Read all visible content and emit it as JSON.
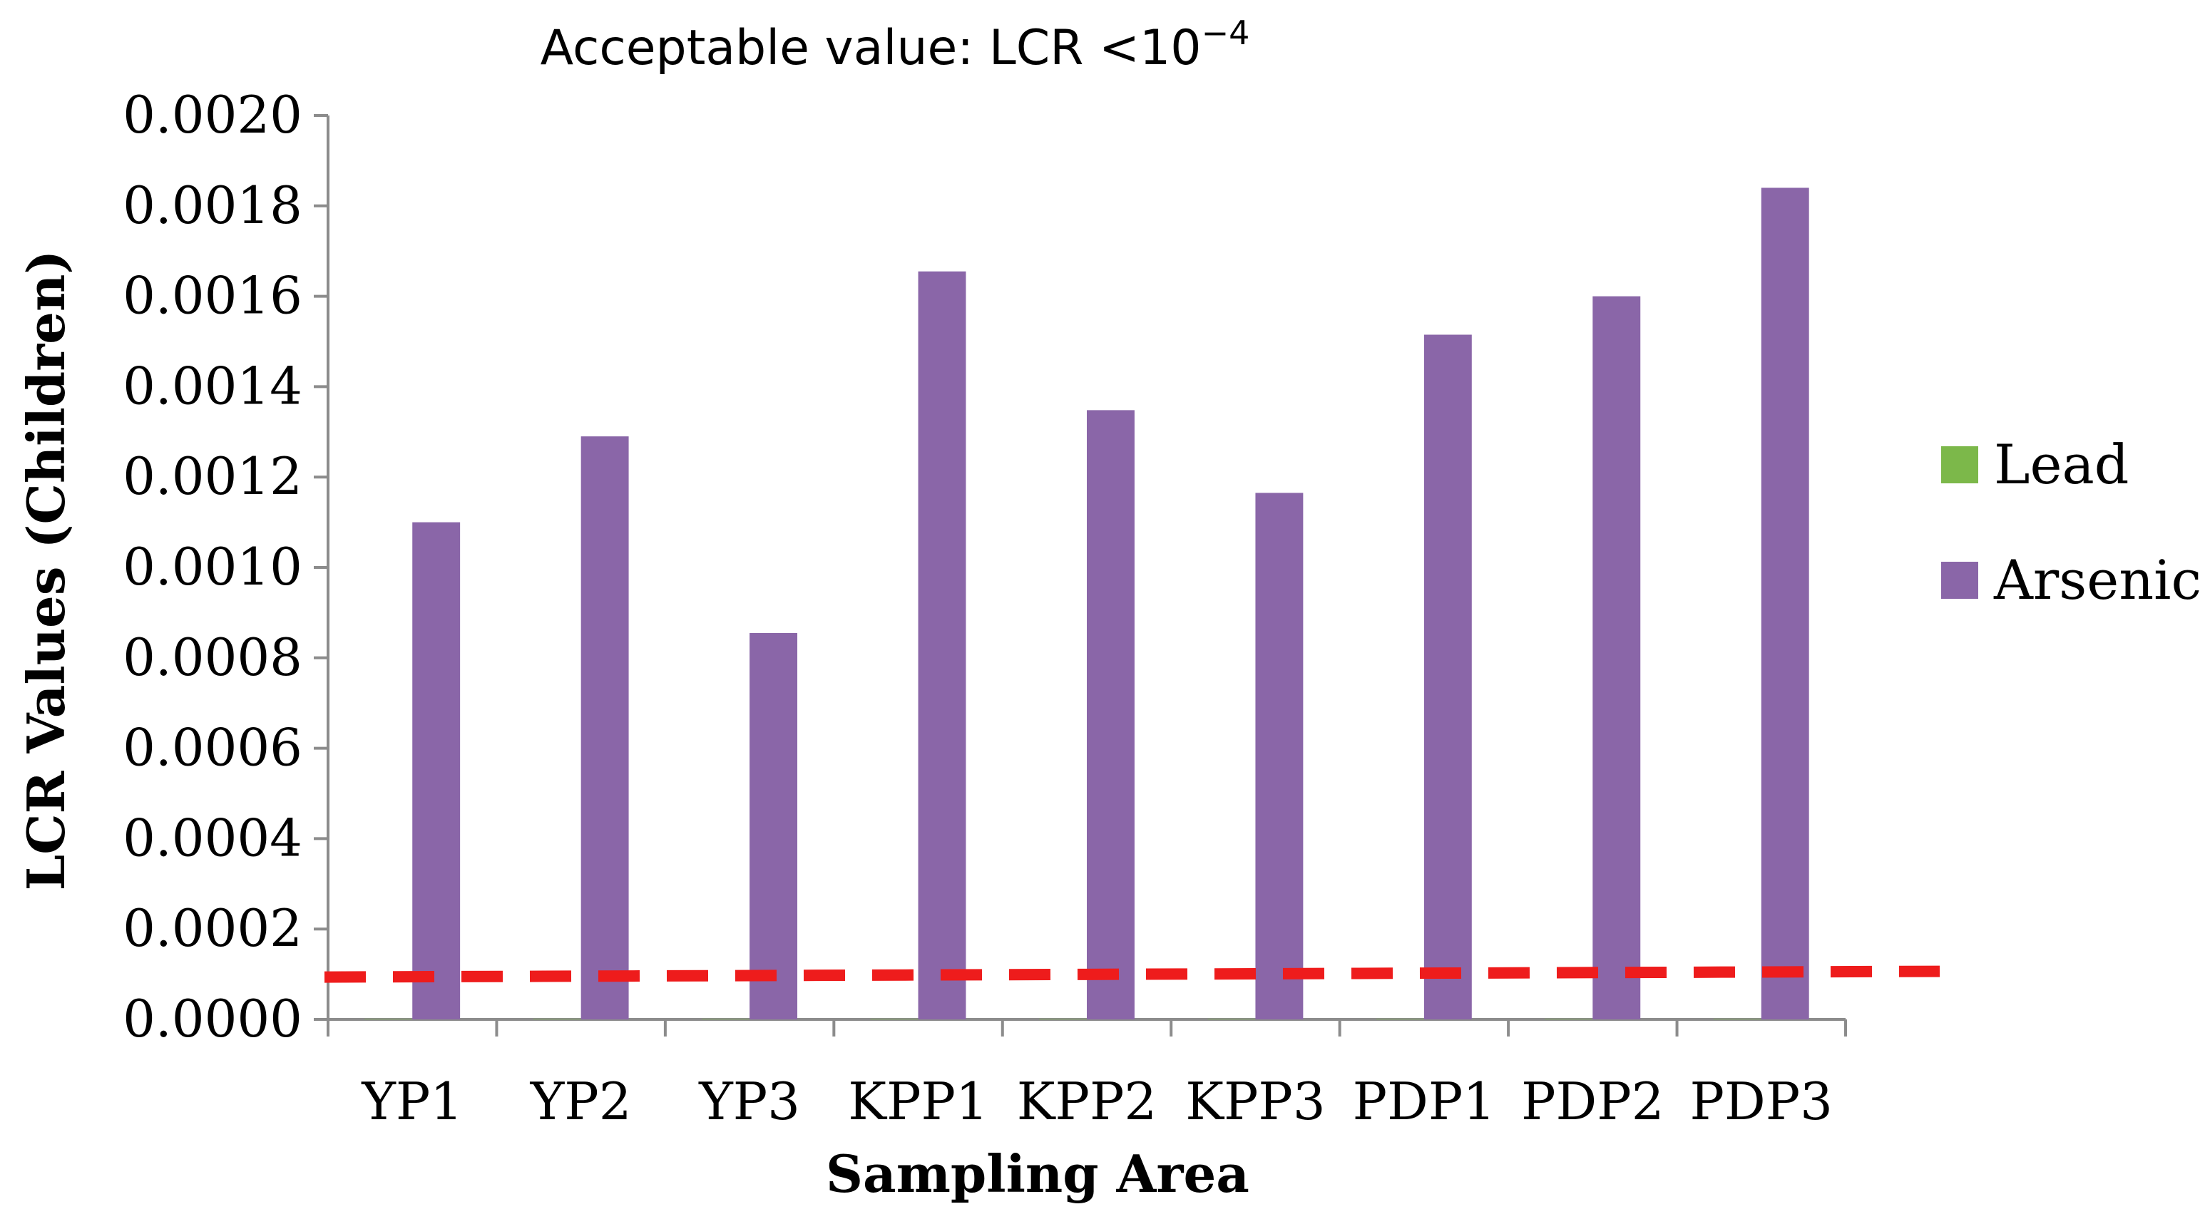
{
  "chart_data": {
    "type": "bar",
    "title": "Acceptable value: LCR <10",
    "title_superscript": "−4",
    "xlabel": "Sampling Area",
    "ylabel": "LCR Values (Children)",
    "categories": [
      "YP1",
      "YP2",
      "YP3",
      "KPP1",
      "KPP2",
      "KPP3",
      "PDP1",
      "PDP2",
      "PDP3"
    ],
    "series": [
      {
        "name": "Lead",
        "color": "#7cb84a",
        "values": [
          1e-06,
          1e-06,
          1e-06,
          1e-06,
          1e-06,
          1e-06,
          1e-06,
          1e-06,
          1e-06
        ]
      },
      {
        "name": "Arsenic",
        "color": "#8a66a8",
        "values": [
          0.0011,
          0.00129,
          0.000855,
          0.001655,
          0.001348,
          0.001165,
          0.001515,
          0.0016,
          0.00184
        ]
      }
    ],
    "ylim": [
      0,
      0.002
    ],
    "yticks": [
      "0.0000",
      "0.0002",
      "0.0004",
      "0.0006",
      "0.0008",
      "0.0010",
      "0.0012",
      "0.0014",
      "0.0016",
      "0.0018",
      "0.0020"
    ],
    "threshold": {
      "value": 0.0001,
      "color": "#ee1c1c",
      "style": "dashed"
    },
    "legend_position": "right",
    "grid": false
  }
}
